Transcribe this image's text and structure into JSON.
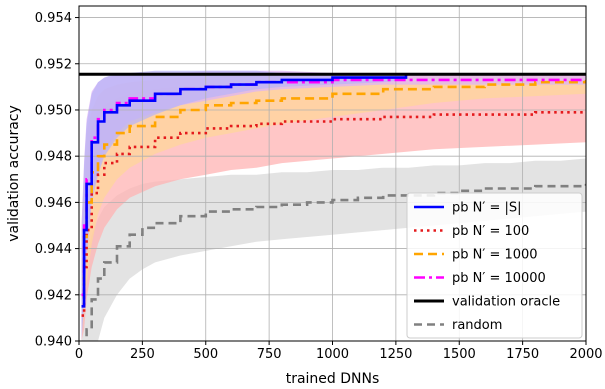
{
  "chart_data": {
    "type": "line",
    "xlabel": "trained DNNs",
    "ylabel": "validation accuracy",
    "xlim": [
      0,
      2000
    ],
    "ylim": [
      0.94,
      0.9545
    ],
    "x_ticks": [
      0,
      250,
      500,
      750,
      1000,
      1250,
      1500,
      1750,
      2000
    ],
    "x_tick_labels": [
      "0",
      "250",
      "500",
      "750",
      "1000",
      "1250",
      "1500",
      "1750",
      "2000"
    ],
    "y_ticks": [
      0.94,
      0.942,
      0.944,
      0.946,
      0.948,
      0.95,
      0.952,
      0.954
    ],
    "y_tick_labels": [
      "0.940",
      "0.942",
      "0.944",
      "0.946",
      "0.948",
      "0.950",
      "0.952",
      "0.954"
    ],
    "grid": true,
    "legend_position": "bottom-right",
    "series": [
      {
        "name": "random",
        "color": "#808080",
        "dash": "8,5",
        "width": 2.6,
        "x": [
          10,
          20,
          30,
          50,
          75,
          100,
          150,
          200,
          250,
          300,
          400,
          500,
          600,
          700,
          800,
          900,
          1000,
          1100,
          1200,
          1300,
          1400,
          1500,
          1600,
          1700,
          1800,
          1900,
          2000
        ],
        "y": [
          0.9393,
          0.9398,
          0.9405,
          0.9418,
          0.9427,
          0.9434,
          0.9441,
          0.9446,
          0.9449,
          0.9451,
          0.9454,
          0.9456,
          0.9457,
          0.9458,
          0.9459,
          0.946,
          0.9461,
          0.9462,
          0.9463,
          0.9463,
          0.9464,
          0.9465,
          0.9466,
          0.9466,
          0.9467,
          0.9467,
          0.9468
        ],
        "band_upper": [
          0.9418,
          0.9428,
          0.9436,
          0.9446,
          0.9453,
          0.9458,
          0.9463,
          0.9466,
          0.9468,
          0.9469,
          0.947,
          0.9471,
          0.9472,
          0.9472,
          0.9473,
          0.9473,
          0.9474,
          0.9474,
          0.9475,
          0.9475,
          0.9476,
          0.9476,
          0.9477,
          0.9477,
          0.9478,
          0.9478,
          0.9479
        ],
        "band_lower": [
          0.938,
          0.938,
          0.938,
          0.9388,
          0.94,
          0.941,
          0.942,
          0.9427,
          0.9431,
          0.9434,
          0.9437,
          0.9439,
          0.9441,
          0.9443,
          0.9444,
          0.9445,
          0.9446,
          0.9447,
          0.9448,
          0.9449,
          0.945,
          0.9451,
          0.9452,
          0.9453,
          0.9454,
          0.9455,
          0.9456
        ],
        "band_color": "#d9d9d9"
      },
      {
        "name": "pb N′ = 100",
        "color": "#e41a1c",
        "dash": "2.5,4",
        "width": 2.6,
        "x": [
          10,
          20,
          30,
          50,
          75,
          100,
          150,
          200,
          300,
          400,
          500,
          600,
          700,
          800,
          1000,
          1200,
          1400,
          1600,
          1800,
          2000
        ],
        "y": [
          0.9411,
          0.9432,
          0.9448,
          0.9464,
          0.9472,
          0.9477,
          0.9481,
          0.9484,
          0.9488,
          0.949,
          0.9492,
          0.9493,
          0.9494,
          0.9495,
          0.9496,
          0.9497,
          0.9498,
          0.9498,
          0.9499,
          0.9499
        ],
        "band_upper": [
          0.944,
          0.9462,
          0.9478,
          0.9492,
          0.9499,
          0.9502,
          0.9505,
          0.9507,
          0.9509,
          0.951,
          0.951,
          0.9511,
          0.9511,
          0.9511,
          0.9512,
          0.9512,
          0.9512,
          0.9513,
          0.9513,
          0.9513
        ],
        "band_lower": [
          0.94,
          0.9405,
          0.9418,
          0.9432,
          0.9442,
          0.9449,
          0.9457,
          0.9462,
          0.9467,
          0.947,
          0.9472,
          0.9474,
          0.9475,
          0.9477,
          0.9479,
          0.9481,
          0.9483,
          0.9484,
          0.9485,
          0.9486
        ],
        "band_color": "#ffb3b3"
      },
      {
        "name": "pb N′ = 1000",
        "color": "#ffa500",
        "dash": "9,5",
        "width": 2.6,
        "x": [
          10,
          20,
          30,
          50,
          75,
          100,
          150,
          200,
          300,
          400,
          500,
          600,
          700,
          800,
          1000,
          1200,
          1400,
          1600,
          1800,
          2000
        ],
        "y": [
          0.942,
          0.9445,
          0.946,
          0.9473,
          0.948,
          0.9485,
          0.949,
          0.9493,
          0.9497,
          0.95,
          0.9502,
          0.9503,
          0.9504,
          0.9505,
          0.9507,
          0.9509,
          0.951,
          0.9511,
          0.9512,
          0.9513
        ],
        "band_upper": [
          0.945,
          0.9474,
          0.949,
          0.95,
          0.9506,
          0.9509,
          0.9511,
          0.9512,
          0.9513,
          0.9514,
          0.9514,
          0.9515,
          0.9515,
          0.9515,
          0.9515,
          0.9516,
          0.9516,
          0.9516,
          0.9516,
          0.9516
        ],
        "band_lower": [
          0.9402,
          0.9412,
          0.9425,
          0.9442,
          0.9455,
          0.9462,
          0.947,
          0.9475,
          0.9481,
          0.9485,
          0.9488,
          0.949,
          0.9492,
          0.9494,
          0.9497,
          0.95,
          0.9503,
          0.9505,
          0.9506,
          0.9507
        ],
        "band_color": "#ffd59a"
      },
      {
        "name": "pb N′ = 10000",
        "color": "#ff00ff",
        "dash": "11,4,3,4",
        "width": 2.6,
        "x": [
          10,
          20,
          30,
          50,
          75,
          100,
          150,
          200,
          300,
          400,
          500,
          600,
          700,
          800,
          1000,
          1200,
          1400,
          1600,
          1800,
          2000
        ],
        "y": [
          0.942,
          0.945,
          0.947,
          0.9488,
          0.9496,
          0.95,
          0.9503,
          0.9505,
          0.9507,
          0.9509,
          0.951,
          0.9511,
          0.9512,
          0.9512,
          0.9513,
          0.9513,
          0.9513,
          0.9513,
          0.9513,
          0.9513
        ],
        "band_upper": [
          0.945,
          0.9478,
          0.9496,
          0.9508,
          0.9512,
          0.9514,
          0.9515,
          0.9516,
          0.9516,
          0.9516,
          0.9517,
          0.9517,
          0.9517,
          0.9517,
          0.9516,
          0.9516,
          0.9516,
          0.9516,
          0.9516,
          0.9516
        ],
        "band_lower": [
          0.9402,
          0.9418,
          0.9438,
          0.9462,
          0.9475,
          0.9482,
          0.949,
          0.9495,
          0.9499,
          0.9502,
          0.9504,
          0.9506,
          0.9508,
          0.9509,
          0.951,
          0.9511,
          0.9511,
          0.9511,
          0.9511,
          0.9511
        ],
        "band_color": "#dcb4f5"
      },
      {
        "name": "pb N′ = |S|",
        "color": "#0000ff",
        "dash": "",
        "width": 2.6,
        "x": [
          10,
          20,
          30,
          50,
          75,
          100,
          150,
          200,
          300,
          400,
          500,
          600,
          700,
          800,
          1000,
          1200,
          1290
        ],
        "y": [
          0.9415,
          0.9448,
          0.9468,
          0.9486,
          0.9495,
          0.9499,
          0.9502,
          0.9504,
          0.9507,
          0.9509,
          0.951,
          0.9511,
          0.9512,
          0.9513,
          0.9514,
          0.9514,
          0.9515
        ],
        "band_upper": [
          0.9445,
          0.9476,
          0.9494,
          0.9507,
          0.9512,
          0.9514,
          0.9516,
          0.9516,
          0.9517,
          0.9517,
          0.9517,
          0.9517,
          0.9517,
          0.9516,
          0.9516,
          0.9516,
          0.9516
        ],
        "band_lower": [
          0.94,
          0.9416,
          0.9436,
          0.946,
          0.9472,
          0.948,
          0.9488,
          0.9493,
          0.9498,
          0.9502,
          0.9505,
          0.9507,
          0.9509,
          0.951,
          0.9511,
          0.9512,
          0.9513
        ],
        "band_color": "#b9b4f7"
      },
      {
        "name": "validation oracle",
        "color": "#000000",
        "dash": "",
        "width": 3,
        "x": [
          0,
          2000
        ],
        "y": [
          0.95155,
          0.95155
        ]
      }
    ],
    "legend_order": [
      "pb N′ = |S|",
      "pb N′ = 100",
      "pb N′ = 1000",
      "pb N′ = 10000",
      "validation oracle",
      "random"
    ]
  }
}
